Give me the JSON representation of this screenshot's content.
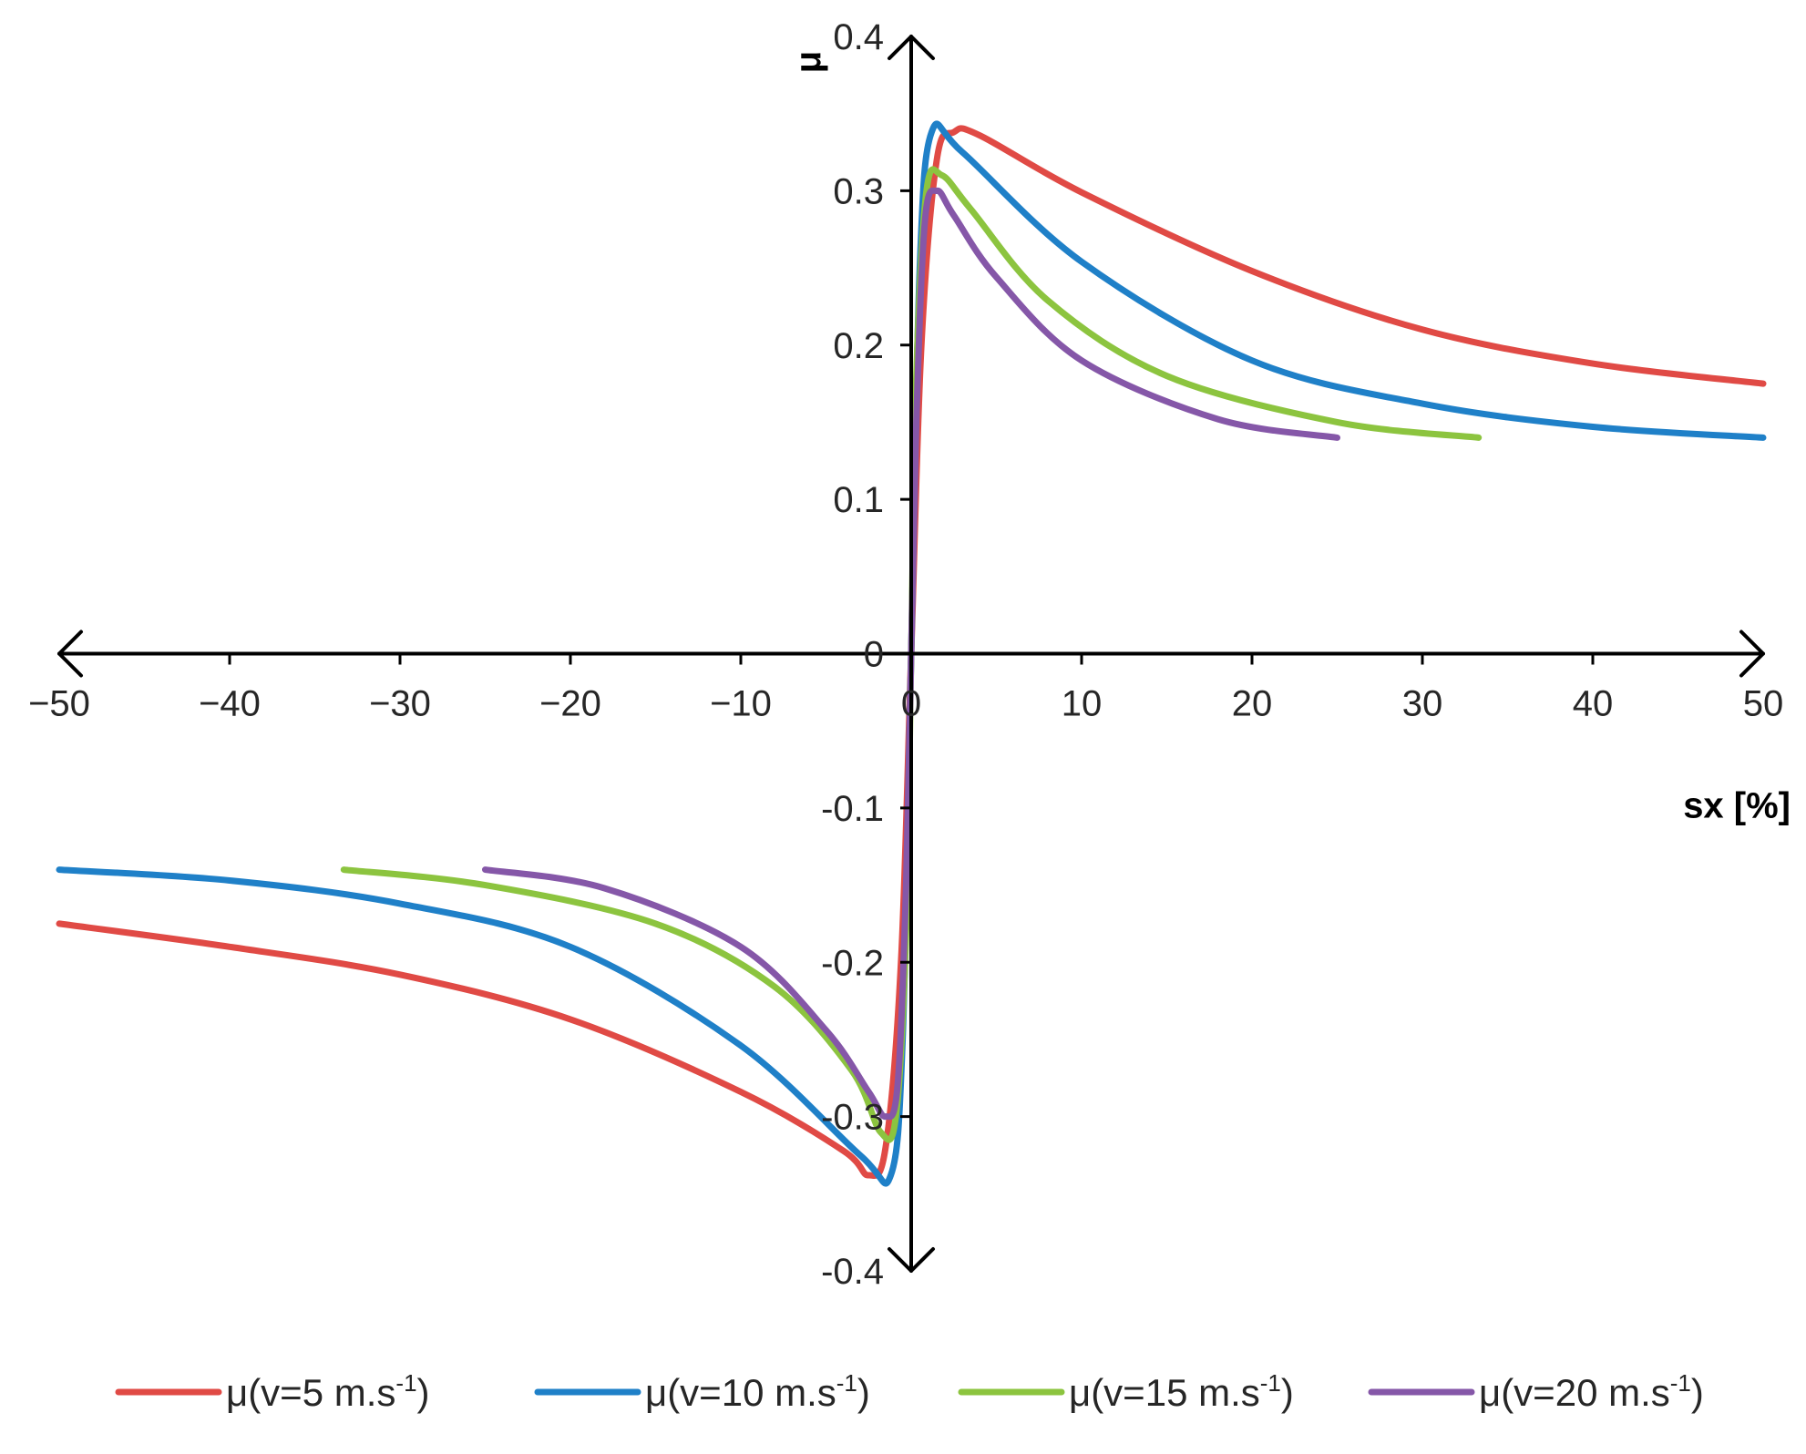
{
  "chart_data": {
    "type": "line",
    "title": "",
    "xlabel": "sx [%]",
    "ylabel": "μ",
    "xlim": [
      -50,
      50
    ],
    "ylim": [
      -0.4,
      0.4
    ],
    "x_ticks": [
      -50,
      -40,
      -30,
      -20,
      -10,
      0,
      10,
      20,
      30,
      40,
      50
    ],
    "x_tick_labels": [
      "−50",
      "−40",
      "−30",
      "−20",
      "−10",
      "0",
      "10",
      "20",
      "30",
      "40",
      "50"
    ],
    "y_ticks": [
      0.4,
      0.3,
      0.2,
      0.1,
      0,
      -0.1,
      -0.2,
      -0.3,
      -0.4
    ],
    "y_tick_labels": [
      "0.4",
      "0.3",
      "0.2",
      "0.1",
      "0",
      "-0.1",
      "-0.2",
      "-0.3",
      "-0.4"
    ],
    "grid": false,
    "legend_position": "bottom",
    "series": [
      {
        "name": "μ(v=5 m.s⁻¹)",
        "legend_base": "μ(v=5 m.s",
        "legend_sup": "-1",
        "legend_close": ")",
        "color": "#e04a45",
        "x": [
          -50,
          -40,
          -30,
          -20,
          -10,
          -4,
          -2.5,
          -1.5,
          -0.6,
          0,
          0.6,
          1.5,
          2.5,
          4,
          10,
          20,
          30,
          40,
          50
        ],
        "y": [
          -0.175,
          -0.19,
          -0.208,
          -0.237,
          -0.284,
          -0.322,
          -0.338,
          -0.32,
          -0.2,
          0,
          0.2,
          0.32,
          0.338,
          0.336,
          0.299,
          0.248,
          0.21,
          0.188,
          0.175
        ]
      },
      {
        "name": "μ(v=10 m.s⁻¹)",
        "legend_base": "μ(v=10 m.s",
        "legend_sup": "-1",
        "legend_close": ")",
        "color": "#1f80c8",
        "x": [
          -50,
          -40,
          -30,
          -20,
          -10,
          -3,
          -1.2,
          -0.5,
          0,
          0.5,
          1.2,
          3,
          10,
          20,
          30,
          40,
          50
        ],
        "y": [
          -0.14,
          -0.147,
          -0.162,
          -0.19,
          -0.254,
          -0.325,
          -0.338,
          -0.25,
          0,
          0.25,
          0.338,
          0.325,
          0.254,
          0.19,
          0.162,
          0.147,
          0.14
        ]
      },
      {
        "name": "μ(v=15 m.s⁻¹)",
        "legend_base": "μ(v=15 m.s",
        "legend_sup": "-1",
        "legend_close": ")",
        "color": "#8cc43f",
        "x": [
          -33.3,
          -25,
          -15,
          -8,
          -3.5,
          -1.8,
          -0.9,
          -0.3,
          0,
          0.3,
          0.9,
          1.8,
          3.5,
          8,
          15,
          25,
          33.3
        ],
        "y": [
          -0.14,
          -0.15,
          -0.175,
          -0.216,
          -0.27,
          -0.31,
          -0.3,
          -0.18,
          0,
          0.18,
          0.3,
          0.31,
          0.288,
          0.229,
          0.18,
          0.15,
          0.14
        ]
      },
      {
        "name": "μ(v=20 m.s⁻¹)",
        "legend_base": "μ(v=20 m.s",
        "legend_sup": "-1",
        "legend_close": ")",
        "color": "#8557a8",
        "x": [
          -25,
          -18,
          -10,
          -5,
          -2.5,
          -1.5,
          -0.8,
          -0.3,
          0,
          0.3,
          0.8,
          1.5,
          2.5,
          5,
          10,
          18,
          25
        ],
        "y": [
          -0.14,
          -0.152,
          -0.19,
          -0.244,
          -0.284,
          -0.3,
          -0.28,
          -0.15,
          0,
          0.15,
          0.28,
          0.3,
          0.284,
          0.244,
          0.19,
          0.152,
          0.14
        ]
      }
    ]
  }
}
